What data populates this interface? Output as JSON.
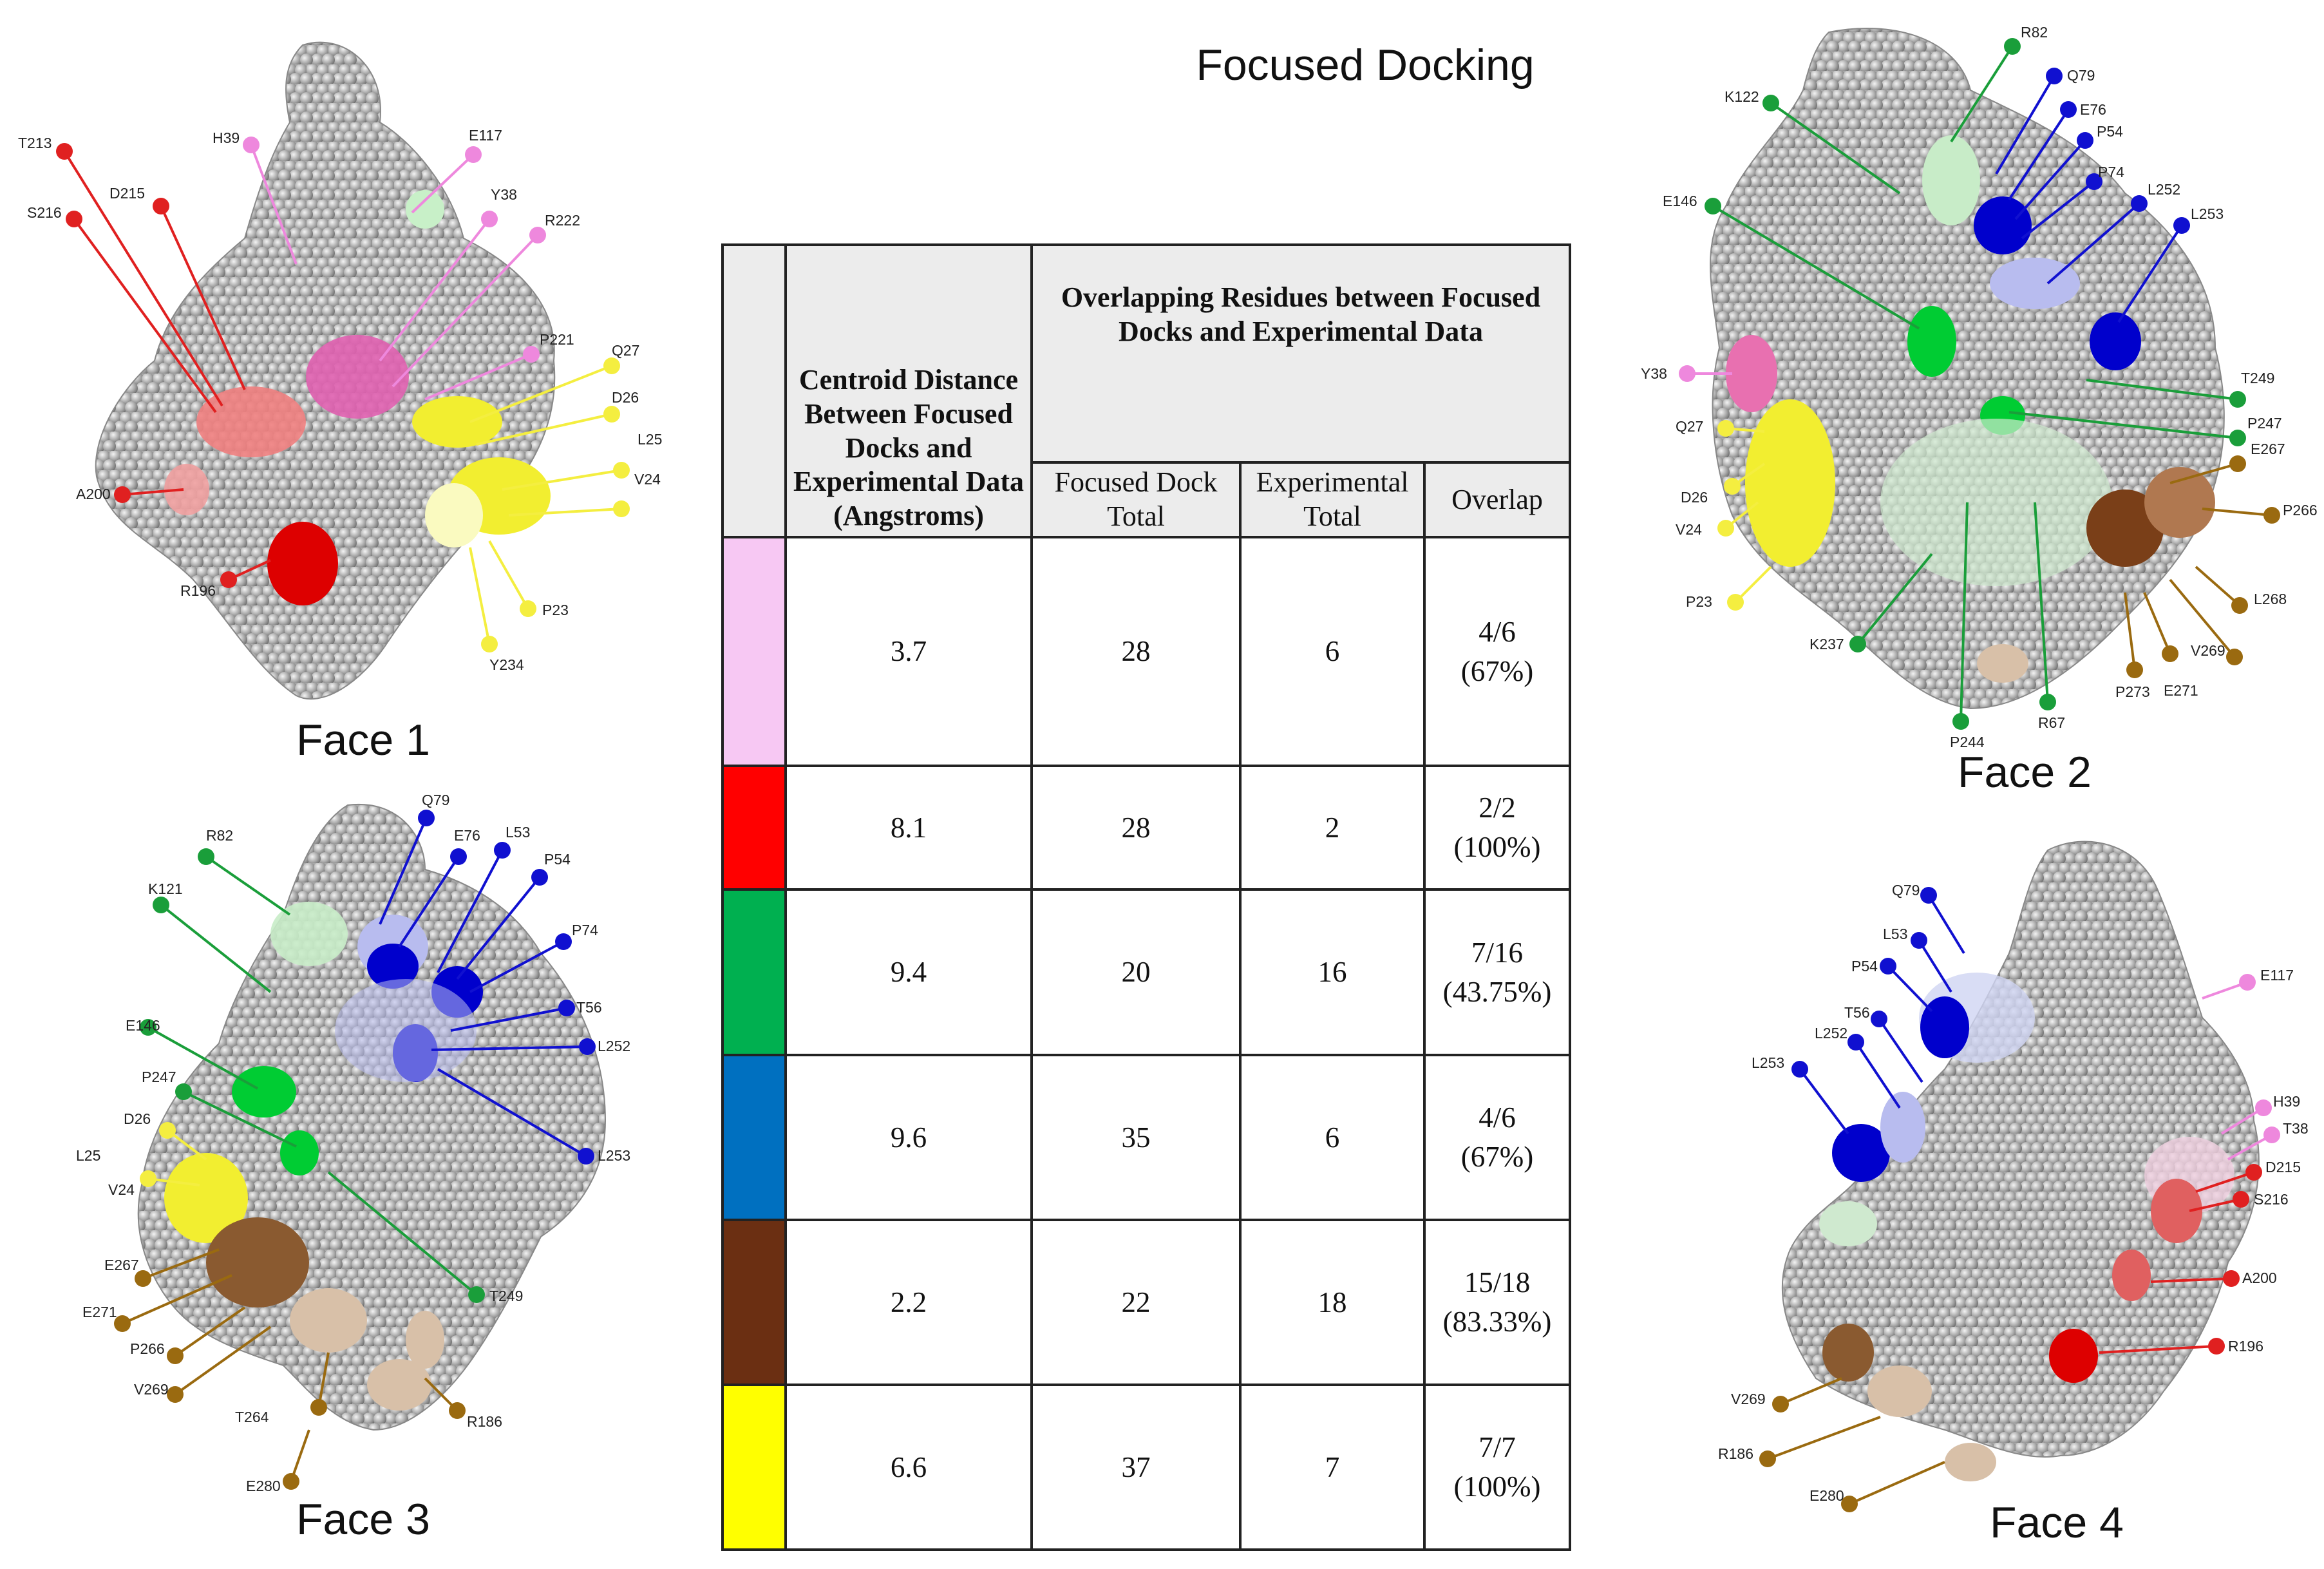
{
  "title": "Focused Docking",
  "table": {
    "header_centroid": "Centroid Distance Between Focused Docks and Experimental Data (Angstroms)",
    "header_overlap": "Overlapping Residues between Focused Docks and Experimental Data",
    "sub_focused": "Focused Dock Total",
    "sub_experimental": "Experimental Total",
    "sub_overlap": "Overlap",
    "rows": [
      {
        "color": "#f7c8f3",
        "centroid": "3.7",
        "focused": "28",
        "experimental": "6",
        "overlap": "4/6\n(67%)"
      },
      {
        "color": "#ff0000",
        "centroid": "8.1",
        "focused": "28",
        "experimental": "2",
        "overlap": "2/2\n(100%)"
      },
      {
        "color": "#00b050",
        "centroid": "9.4",
        "focused": "20",
        "experimental": "16",
        "overlap": "7/16\n(43.75%)"
      },
      {
        "color": "#0070c0",
        "centroid": "9.6",
        "focused": "35",
        "experimental": "6",
        "overlap": "4/6\n(67%)"
      },
      {
        "color": "#6b2f12",
        "centroid": "2.2",
        "focused": "22",
        "experimental": "18",
        "overlap": "15/18\n(83.33%)"
      },
      {
        "color": "#ffff00",
        "centroid": "6.6",
        "focused": "37",
        "experimental": "7",
        "overlap": "7/7\n(100%)"
      }
    ]
  },
  "faces": {
    "face1": {
      "label": "Face 1",
      "residues": [
        "T213",
        "D215",
        "S216",
        "H39",
        "E117",
        "Y38",
        "R222",
        "P221",
        "Q27",
        "D26",
        "L25",
        "V24",
        "A200",
        "R196",
        "P23",
        "Y234"
      ]
    },
    "face2": {
      "label": "Face 2",
      "residues": [
        "R82",
        "Q79",
        "K122",
        "E76",
        "P54",
        "P74",
        "L252",
        "L253",
        "E146",
        "Y38",
        "Q27",
        "D26",
        "V24",
        "P23",
        "T249",
        "P247",
        "E267",
        "P266",
        "L268",
        "V269",
        "E271",
        "P273",
        "R67",
        "P244",
        "K237"
      ]
    },
    "face3": {
      "label": "Face 3",
      "residues": [
        "Q79",
        "R82",
        "E76",
        "L53",
        "P54",
        "K121",
        "P74",
        "T56",
        "L252",
        "E146",
        "P247",
        "D26",
        "L25",
        "V24",
        "L253",
        "E267",
        "E271",
        "P266",
        "V269",
        "T249",
        "T264",
        "R186",
        "E280"
      ]
    },
    "face4": {
      "label": "Face 4",
      "residues": [
        "Q79",
        "L53",
        "P54",
        "T56",
        "L252",
        "L253",
        "E117",
        "H39",
        "T38",
        "D215",
        "S216",
        "A200",
        "R196",
        "V269",
        "R186",
        "E280"
      ]
    }
  },
  "colors": {
    "pink": "#ee88dd",
    "red": "#e02020",
    "green": "#1a9e3a",
    "blue": "#1010d0",
    "brown": "#9a6a10",
    "yellow": "#f4ee40"
  }
}
